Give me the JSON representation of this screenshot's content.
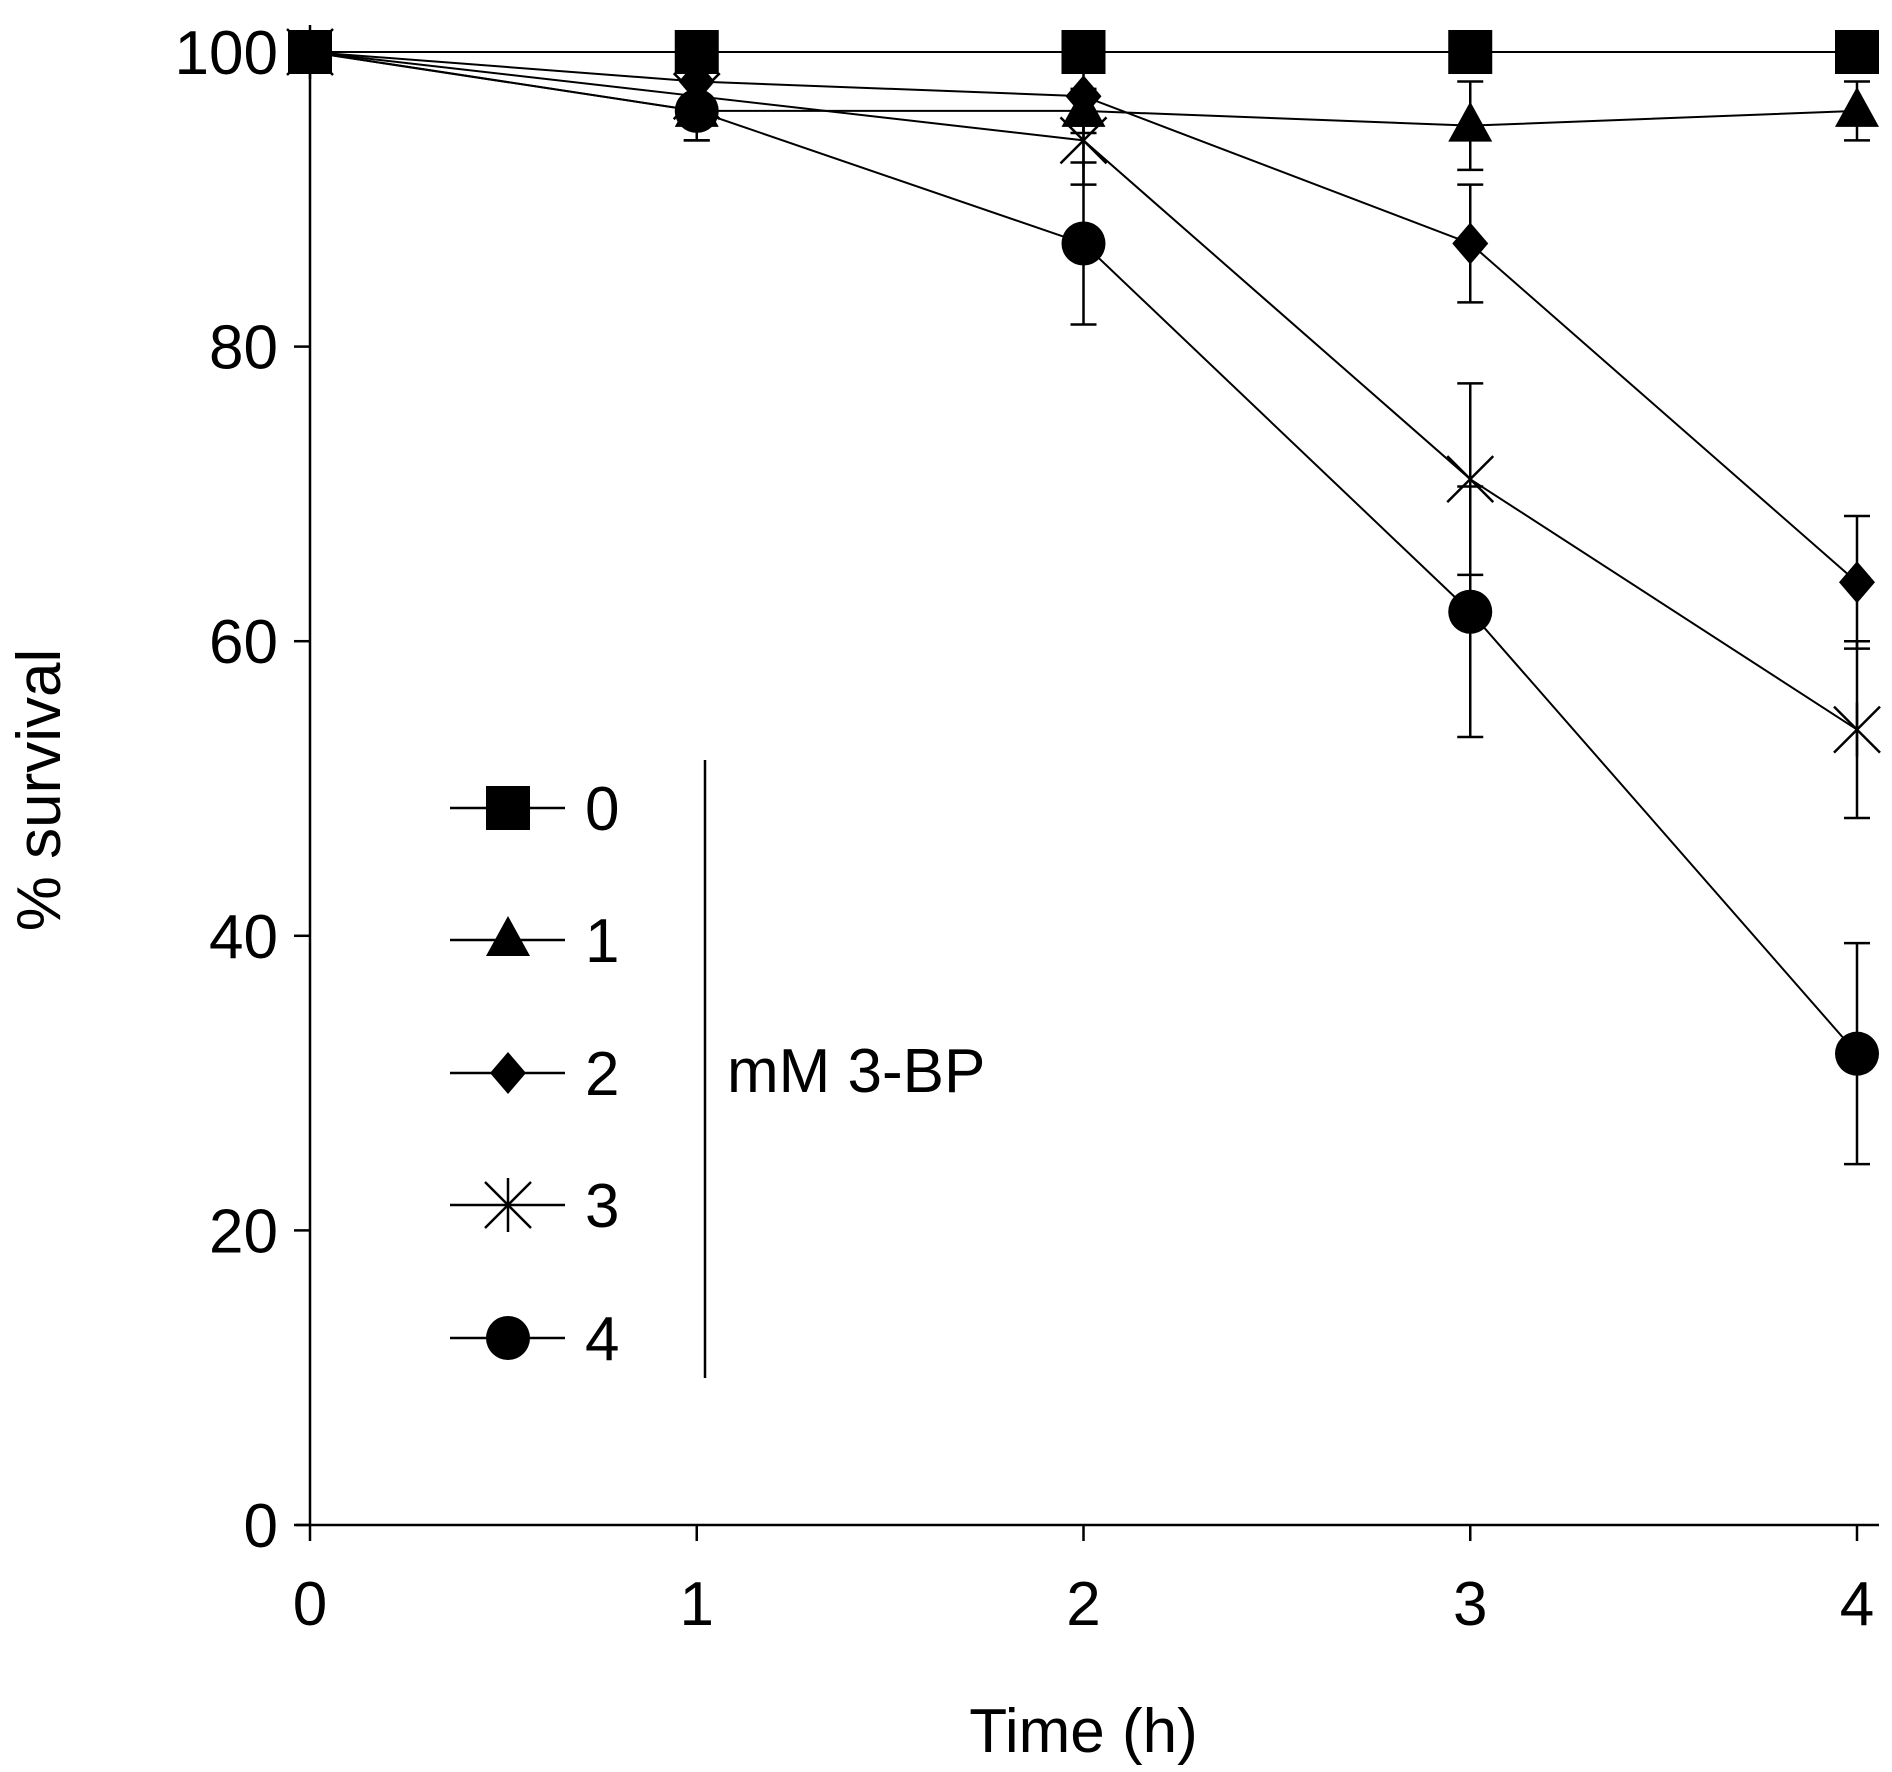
{
  "chart_data": {
    "type": "line",
    "title": "",
    "xlabel": "Time (h)",
    "ylabel": "% survival",
    "xlim": [
      0,
      4
    ],
    "ylim": [
      0,
      100
    ],
    "x_ticks": [
      "0",
      "1",
      "2",
      "3",
      "4"
    ],
    "y_ticks": [
      "0",
      "20",
      "40",
      "60",
      "80",
      "100"
    ],
    "grid": false,
    "legend_title": "mM 3-BP",
    "legend_position": "bottom-left",
    "x": [
      0,
      1,
      2,
      3,
      4
    ],
    "series": [
      {
        "name": "0",
        "marker": "square",
        "values": [
          100,
          100,
          100,
          100,
          100
        ],
        "errors": [
          0,
          0,
          0,
          0,
          0
        ]
      },
      {
        "name": "1",
        "marker": "triangle",
        "values": [
          100,
          96,
          96,
          95,
          96
        ],
        "errors": [
          0,
          2,
          1.5,
          3,
          2
        ]
      },
      {
        "name": "2",
        "marker": "diamond",
        "values": [
          100,
          98,
          97,
          87,
          64
        ],
        "errors": [
          0,
          1.5,
          2,
          4,
          4.5
        ]
      },
      {
        "name": "3",
        "marker": "star",
        "values": [
          100,
          97,
          94,
          71,
          54
        ],
        "errors": [
          0,
          2,
          3,
          6.5,
          6
        ]
      },
      {
        "name": "4",
        "marker": "circle",
        "values": [
          100,
          96,
          87,
          62,
          32
        ],
        "errors": [
          0,
          2,
          5.5,
          8.5,
          7.5
        ]
      }
    ]
  }
}
